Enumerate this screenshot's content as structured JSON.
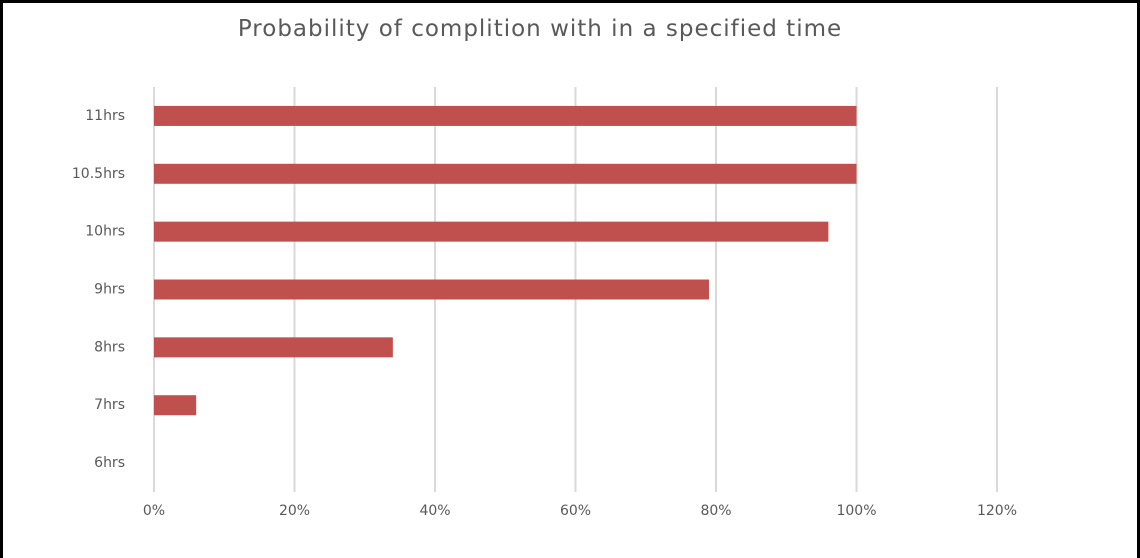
{
  "chart_data": {
    "type": "bar",
    "orientation": "horizontal",
    "title": "Probability of complition with in a specified time",
    "categories": [
      "11hrs",
      "10.5hrs",
      "10hrs",
      "9hrs",
      "8hrs",
      "7hrs",
      "6hrs"
    ],
    "values": [
      100,
      100,
      96,
      79,
      34,
      6,
      0
    ],
    "color": "#c0504d",
    "xlim": [
      0,
      120
    ],
    "xticks": [
      {
        "value": 0,
        "label": "0%"
      },
      {
        "value": 20,
        "label": "20%"
      },
      {
        "value": 40,
        "label": "40%"
      },
      {
        "value": 60,
        "label": "60%"
      },
      {
        "value": 80,
        "label": "80%"
      },
      {
        "value": 100,
        "label": "100%"
      },
      {
        "value": 120,
        "label": "120%"
      }
    ],
    "grid": true
  }
}
